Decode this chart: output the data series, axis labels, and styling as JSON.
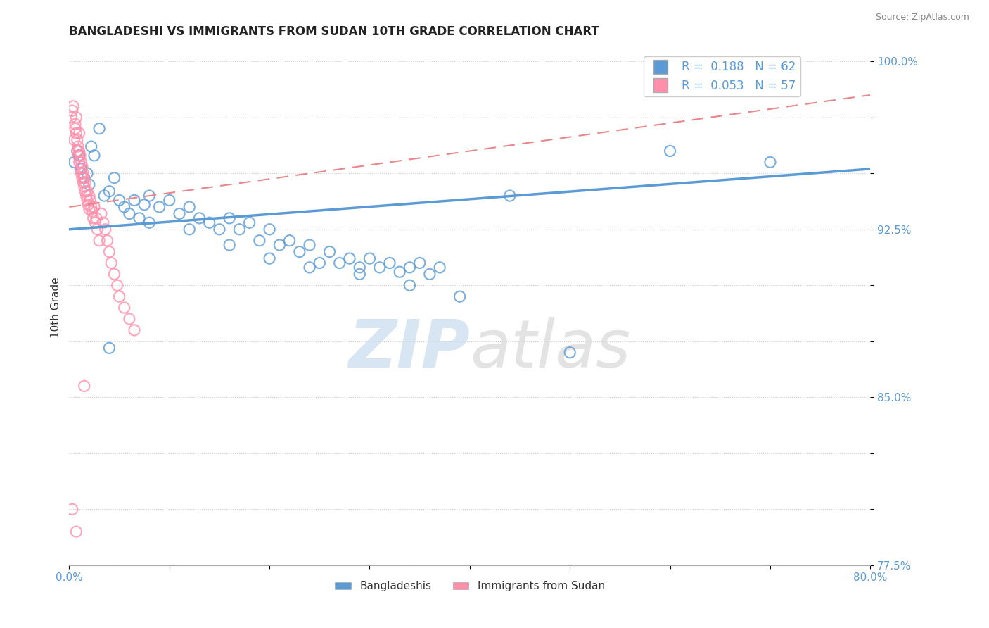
{
  "title": "BANGLADESHI VS IMMIGRANTS FROM SUDAN 10TH GRADE CORRELATION CHART",
  "source": "Source: ZipAtlas.com",
  "ylabel": "10th Grade",
  "xlim": [
    0.0,
    0.8
  ],
  "ylim": [
    0.775,
    1.005
  ],
  "blue_color": "#5B9BD5",
  "pink_color": "#FF8FAB",
  "pink_line_color": "#E8868A",
  "watermark_zip": "ZIP",
  "watermark_atlas": "atlas",
  "blue_r": "0.188",
  "blue_n": "62",
  "pink_r": "0.053",
  "pink_n": "57",
  "blue_scatter_x": [
    0.005,
    0.008,
    0.01,
    0.012,
    0.015,
    0.018,
    0.02,
    0.022,
    0.025,
    0.03,
    0.035,
    0.04,
    0.045,
    0.05,
    0.055,
    0.06,
    0.065,
    0.07,
    0.075,
    0.08,
    0.09,
    0.1,
    0.11,
    0.12,
    0.13,
    0.14,
    0.15,
    0.16,
    0.17,
    0.18,
    0.19,
    0.2,
    0.21,
    0.22,
    0.23,
    0.24,
    0.25,
    0.26,
    0.27,
    0.28,
    0.29,
    0.3,
    0.31,
    0.32,
    0.33,
    0.34,
    0.35,
    0.36,
    0.37,
    0.04,
    0.08,
    0.12,
    0.16,
    0.2,
    0.24,
    0.29,
    0.34,
    0.39,
    0.44,
    0.5,
    0.6,
    0.7
  ],
  "blue_scatter_y": [
    0.955,
    0.96,
    0.958,
    0.952,
    0.948,
    0.95,
    0.945,
    0.962,
    0.958,
    0.97,
    0.94,
    0.942,
    0.948,
    0.938,
    0.935,
    0.932,
    0.938,
    0.93,
    0.936,
    0.928,
    0.935,
    0.938,
    0.932,
    0.935,
    0.93,
    0.928,
    0.925,
    0.93,
    0.925,
    0.928,
    0.92,
    0.925,
    0.918,
    0.92,
    0.915,
    0.918,
    0.91,
    0.915,
    0.91,
    0.912,
    0.908,
    0.912,
    0.908,
    0.91,
    0.906,
    0.908,
    0.91,
    0.905,
    0.908,
    0.872,
    0.94,
    0.925,
    0.918,
    0.912,
    0.908,
    0.905,
    0.9,
    0.895,
    0.94,
    0.87,
    0.96,
    0.955
  ],
  "pink_scatter_x": [
    0.002,
    0.003,
    0.004,
    0.005,
    0.006,
    0.006,
    0.007,
    0.007,
    0.008,
    0.008,
    0.009,
    0.009,
    0.01,
    0.01,
    0.01,
    0.011,
    0.011,
    0.012,
    0.012,
    0.013,
    0.013,
    0.014,
    0.014,
    0.015,
    0.015,
    0.016,
    0.016,
    0.017,
    0.018,
    0.018,
    0.019,
    0.02,
    0.02,
    0.021,
    0.022,
    0.023,
    0.024,
    0.025,
    0.026,
    0.027,
    0.028,
    0.03,
    0.032,
    0.034,
    0.036,
    0.038,
    0.04,
    0.042,
    0.045,
    0.048,
    0.05,
    0.055,
    0.06,
    0.065,
    0.003,
    0.007,
    0.015
  ],
  "pink_scatter_y": [
    0.975,
    0.978,
    0.98,
    0.965,
    0.97,
    0.972,
    0.968,
    0.975,
    0.96,
    0.965,
    0.958,
    0.962,
    0.955,
    0.96,
    0.968,
    0.952,
    0.958,
    0.95,
    0.955,
    0.948,
    0.953,
    0.946,
    0.95,
    0.944,
    0.948,
    0.942,
    0.946,
    0.94,
    0.938,
    0.942,
    0.936,
    0.934,
    0.94,
    0.938,
    0.935,
    0.933,
    0.93,
    0.935,
    0.928,
    0.93,
    0.925,
    0.92,
    0.932,
    0.928,
    0.925,
    0.92,
    0.915,
    0.91,
    0.905,
    0.9,
    0.895,
    0.89,
    0.885,
    0.88,
    0.8,
    0.79,
    0.855
  ],
  "blue_line_x0": 0.0,
  "blue_line_x1": 0.8,
  "blue_line_y0": 0.925,
  "blue_line_y1": 0.952,
  "pink_line_x0": 0.0,
  "pink_line_x1": 0.8,
  "pink_line_y0": 0.935,
  "pink_line_y1": 0.985,
  "ytick_vals": [
    0.775,
    0.8,
    0.825,
    0.85,
    0.875,
    0.9,
    0.925,
    0.95,
    0.975,
    1.0
  ],
  "ytick_labels": [
    "77.5%",
    "",
    "",
    "85.0%",
    "",
    "",
    "92.5%",
    "",
    "",
    "100.0%"
  ],
  "xtick_vals": [
    0.0,
    0.1,
    0.2,
    0.3,
    0.4,
    0.5,
    0.6,
    0.7,
    0.8
  ],
  "xtick_labels": [
    "0.0%",
    "",
    "",
    "",
    "",
    "",
    "",
    "",
    "80.0%"
  ]
}
